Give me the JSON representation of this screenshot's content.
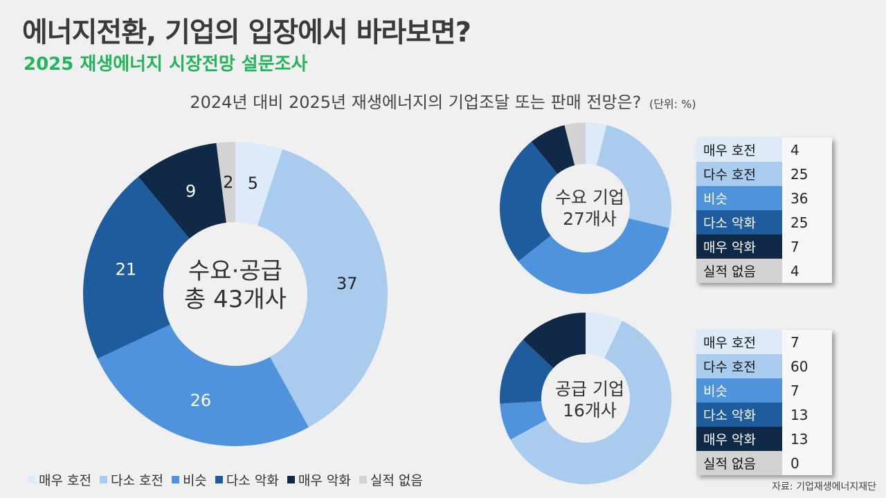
{
  "header": {
    "title": "에너지전환, 기업의 입장에서 바라보면?",
    "subtitle": "2025 재생에너지 시장전망 설문조사",
    "question": "2024년 대비 2025년 재생에너지의 기업조달 또는 판매 전망은?",
    "unit": "(단위: %)"
  },
  "categories": [
    "매우 호전",
    "다수 호전",
    "비슷",
    "다소 악화",
    "매우 악화",
    "실적 없음"
  ],
  "category_colors": [
    "#ddeaf8",
    "#a9cbee",
    "#4f93dd",
    "#1f5c9e",
    "#0f2947",
    "#d3d3d3"
  ],
  "chart_data": [
    {
      "type": "pie",
      "center_label": [
        "수요·공급",
        "총 43개사"
      ],
      "categories": [
        "매우 호전",
        "다수 호전",
        "비슷",
        "다소 악화",
        "매우 악화",
        "실적 없음"
      ],
      "values": [
        5,
        37,
        26,
        21,
        9,
        2
      ],
      "data_labels": [
        "5",
        "37",
        "26",
        "21",
        "9",
        "2"
      ]
    },
    {
      "type": "pie",
      "center_label": [
        "수요 기업",
        "27개사"
      ],
      "categories": [
        "매우 호전",
        "다수 호전",
        "비슷",
        "다소 악화",
        "매우 악화",
        "실적 없음"
      ],
      "values": [
        4,
        25,
        36,
        25,
        7,
        4
      ],
      "data_labels": [
        "4",
        "25",
        "36",
        "25",
        "7",
        "4"
      ]
    },
    {
      "type": "pie",
      "center_label": [
        "공급 기업",
        "16개사"
      ],
      "categories": [
        "매우 호전",
        "다수 호전",
        "비슷",
        "다소 악화",
        "매우 악화",
        "실적 없음"
      ],
      "values": [
        7,
        60,
        7,
        13,
        13,
        0
      ],
      "data_labels": [
        "7",
        "60",
        "7",
        "13",
        "13",
        "0"
      ]
    }
  ],
  "legend": [
    "매우 호전",
    "다소 호전",
    "비슷",
    "다소 악화",
    "매우 악화",
    "실적 없음"
  ],
  "source": "자료: 기업재생에너지재단"
}
